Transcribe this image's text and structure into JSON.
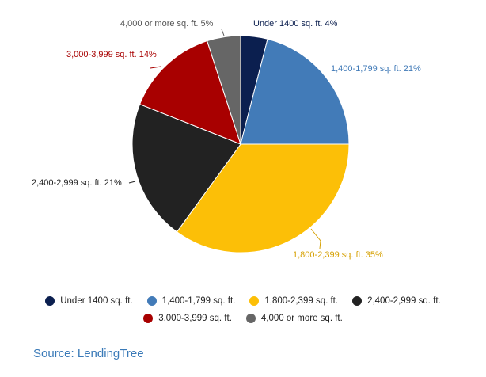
{
  "chart_data": {
    "type": "pie",
    "slices": [
      {
        "label": "Under 1400 sq. ft.",
        "value": 4,
        "color": "#0b1f4f",
        "data_label": "Under 1400 sq. ft. 4%"
      },
      {
        "label": "1,400-1,799 sq. ft.",
        "value": 21,
        "color": "#427bb8",
        "data_label": "1,400-1,799 sq. ft. 21%"
      },
      {
        "label": "1,800-2,399 sq. ft.",
        "value": 35,
        "color": "#fcbf07",
        "data_label": "1,800-2,399 sq. ft. 35%"
      },
      {
        "label": "2,400-2,999 sq. ft.",
        "value": 21,
        "color": "#222222",
        "data_label": "2,400-2,999 sq. ft. 21%"
      },
      {
        "label": "3,000-3,999 sq. ft.",
        "value": 14,
        "color": "#a80000",
        "data_label": "3,000-3,999 sq. ft. 14%"
      },
      {
        "label": "4,000 or more sq. ft.",
        "value": 5,
        "color": "#666666",
        "data_label": "4,000 or more sq. ft. 5%"
      }
    ],
    "legend_position": "bottom"
  },
  "source": "Source: LendingTree"
}
